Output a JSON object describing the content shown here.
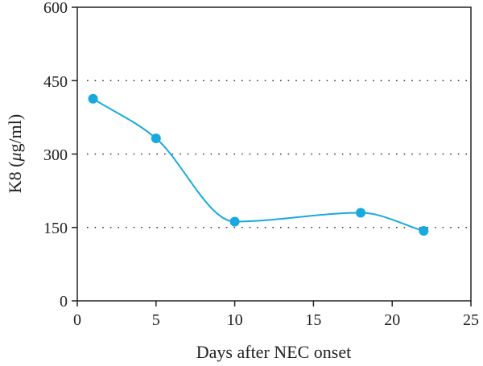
{
  "chart_data": {
    "type": "line",
    "title": "",
    "xlabel": "Days after NEC onset",
    "ylabel_prefix": "K8 (",
    "ylabel_mu": "μ",
    "ylabel_suffix": "g/ml)",
    "xlim": [
      0,
      25
    ],
    "ylim": [
      0,
      600
    ],
    "x_ticks": [
      0,
      5,
      10,
      15,
      20,
      25
    ],
    "y_ticks": [
      0,
      150,
      300,
      450,
      600
    ],
    "x_tick_labels": [
      "0",
      "5",
      "10",
      "15",
      "20",
      "25"
    ],
    "y_tick_labels": [
      "0",
      "150",
      "300",
      "450",
      "600"
    ],
    "gridlines": [
      150,
      300,
      450
    ],
    "grid_style": "dotted horizontal",
    "legend": "none",
    "smooth": true,
    "series": [
      {
        "x": [
          1,
          5,
          10,
          18,
          22
        ],
        "y": [
          413,
          332,
          162,
          180,
          143
        ],
        "color": "#17a9df"
      }
    ]
  }
}
